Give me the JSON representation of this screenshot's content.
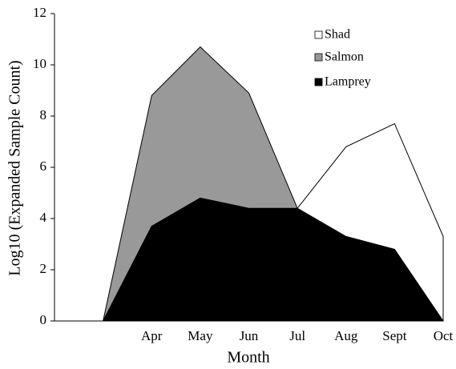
{
  "chart_data": {
    "type": "area",
    "x_label": "Month",
    "y_label": "Log10 (Expanded Sample Count)",
    "categories": [
      null,
      null,
      "Apr",
      "May",
      "Jun",
      "Jul",
      "Aug",
      "Sept",
      "Oct"
    ],
    "series": [
      {
        "name": "Shad",
        "color": "#ffffff",
        "values": [
          null,
          null,
          null,
          null,
          null,
          4.4,
          6.8,
          7.7,
          3.3
        ]
      },
      {
        "name": "Salmon",
        "color": "#999999",
        "values": [
          0,
          0,
          8.8,
          10.7,
          8.9,
          4.4,
          null,
          null,
          null
        ]
      },
      {
        "name": "Lamprey",
        "color": "#000000",
        "values": [
          0,
          0,
          3.7,
          4.8,
          4.4,
          4.4,
          3.3,
          2.8,
          0
        ]
      }
    ],
    "ylim": [
      0,
      12
    ],
    "yticks": [
      0,
      2,
      4,
      6,
      8,
      10,
      12
    ]
  }
}
